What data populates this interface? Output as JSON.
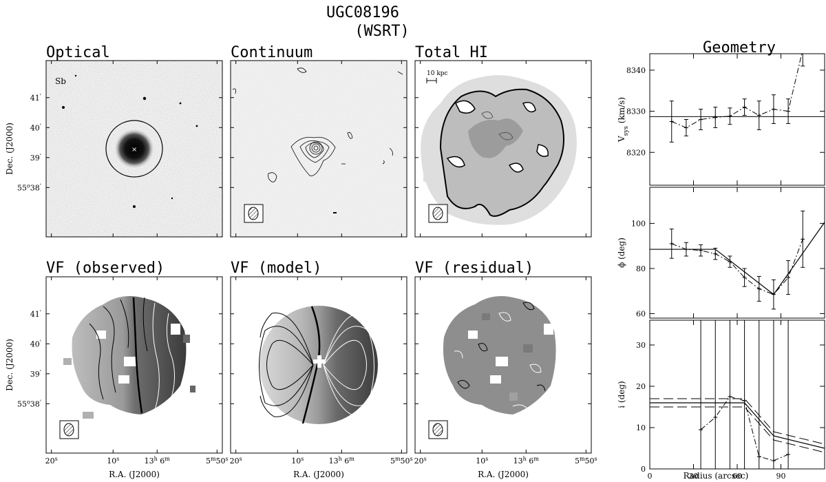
{
  "header": {
    "title": "UGC08196",
    "subtitle": "(WSRT)"
  },
  "panels": {
    "optical": {
      "title": "Optical",
      "morph": "Sb"
    },
    "continuum": {
      "title": "Continuum"
    },
    "totalhi": {
      "title": "Total HI",
      "scalebar": "10 kpc"
    },
    "vf_obs": {
      "title": "VF (observed)"
    },
    "vf_model": {
      "title": "VF (model)"
    },
    "vf_res": {
      "title": "VF (residual)"
    }
  },
  "sky_axes": {
    "dec_label": "Dec. (J2000)",
    "ra_label": "R.A. (J2000)",
    "dec_ticks": [
      {
        "deg": "",
        "min": "41",
        "sec": "'"
      },
      {
        "deg": "",
        "min": "40",
        "sec": "'"
      },
      {
        "deg": "",
        "min": "39",
        "sec": "'"
      },
      {
        "deg": "55",
        "min": "38",
        "sec": "'"
      }
    ],
    "ra_ticks": [
      {
        "main": "20",
        "sup": "s"
      },
      {
        "main": "10",
        "sup": "s"
      },
      {
        "main": "13",
        "sup": "h",
        "main2": " 6",
        "sup2": "m"
      },
      {
        "main": "5",
        "sup": "m",
        "main2": "50",
        "sup2": "s"
      }
    ]
  },
  "geometry": {
    "title": "Geometry",
    "xlabel": "Radius (arcsec)",
    "x_ticks": [
      "0",
      "30",
      "60",
      "90"
    ]
  },
  "chart_data": [
    {
      "type": "line",
      "panel": "vsys",
      "ylabel": "V",
      "ylabel_sub": "sys",
      "ylabel_unit": "(km/s)",
      "xlim": [
        0,
        120
      ],
      "ylim": [
        8312,
        8344
      ],
      "yticks": [
        8320,
        8330,
        8340
      ],
      "fit_line": 8328.7,
      "series": [
        {
          "x": [
            15,
            25,
            35,
            45,
            55,
            65,
            75,
            85,
            95,
            105
          ],
          "y": [
            8327.5,
            8326.0,
            8328.0,
            8328.5,
            8328.8,
            8331.0,
            8329.0,
            8330.5,
            8330.0,
            8345.0
          ],
          "err": [
            5.0,
            2.0,
            2.5,
            2.5,
            2.0,
            2.0,
            3.5,
            3.5,
            3.0,
            4.0
          ]
        }
      ]
    },
    {
      "type": "line",
      "panel": "phi",
      "ylabel": "ϕ (deg)",
      "xlim": [
        0,
        120
      ],
      "ylim": [
        58,
        116
      ],
      "yticks": [
        60,
        80,
        100
      ],
      "fit_x": [
        0,
        45,
        85,
        120
      ],
      "fit_y": [
        88.5,
        88.5,
        68.5,
        100.5
      ],
      "series": [
        {
          "x": [
            15,
            25,
            35,
            45,
            55,
            65,
            75,
            85,
            95,
            105
          ],
          "y": [
            91.0,
            88.5,
            88.0,
            86.5,
            83.0,
            76.0,
            71.0,
            68.5,
            76.0,
            93.0
          ],
          "err": [
            6.5,
            3.0,
            2.5,
            2.5,
            2.5,
            4.0,
            5.5,
            6.5,
            7.5,
            12.5
          ]
        }
      ]
    },
    {
      "type": "line",
      "panel": "incl",
      "ylabel": "i (deg)",
      "xlim": [
        0,
        120
      ],
      "ylim": [
        0,
        36
      ],
      "yticks": [
        0,
        10,
        20,
        30
      ],
      "fit_x": [
        0,
        65,
        85,
        120
      ],
      "fit_y": [
        16.0,
        16.0,
        8.0,
        5.0
      ],
      "fit_band": 1.0,
      "series": [
        {
          "x": [
            35,
            45,
            55,
            65,
            75,
            85,
            95
          ],
          "y": [
            9.5,
            12.5,
            17.5,
            16.5,
            3.0,
            2.0,
            3.5
          ]
        }
      ]
    }
  ]
}
